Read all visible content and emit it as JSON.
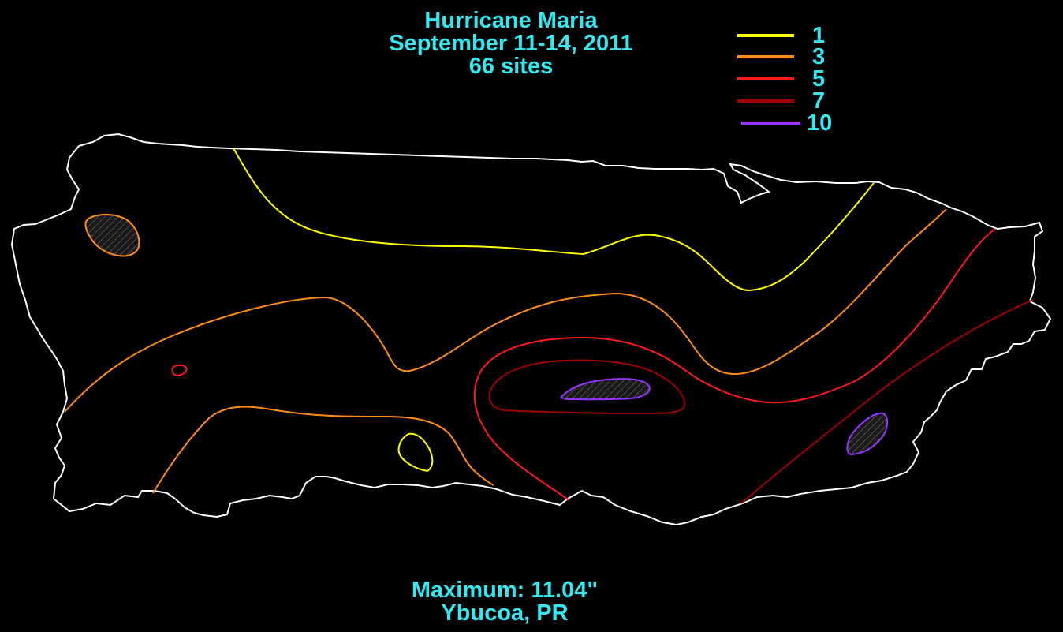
{
  "header": {
    "title": "Hurricane Maria",
    "dates": "September 11-14, 2011",
    "sites": "66 sites"
  },
  "legend": [
    {
      "label": "1",
      "color": "#ffff00"
    },
    {
      "label": "3",
      "color": "#ff8c1a"
    },
    {
      "label": "5",
      "color": "#ff1a1a"
    },
    {
      "label": "7",
      "color": "#a00000"
    },
    {
      "label": "10",
      "color": "#9933ff"
    }
  ],
  "footer": {
    "maximum": "Maximum:  11.04\"",
    "location": "Ybucoa, PR"
  },
  "colors": {
    "background": "#000000",
    "text": "#33e8f0",
    "coastline": "#ffffff"
  }
}
